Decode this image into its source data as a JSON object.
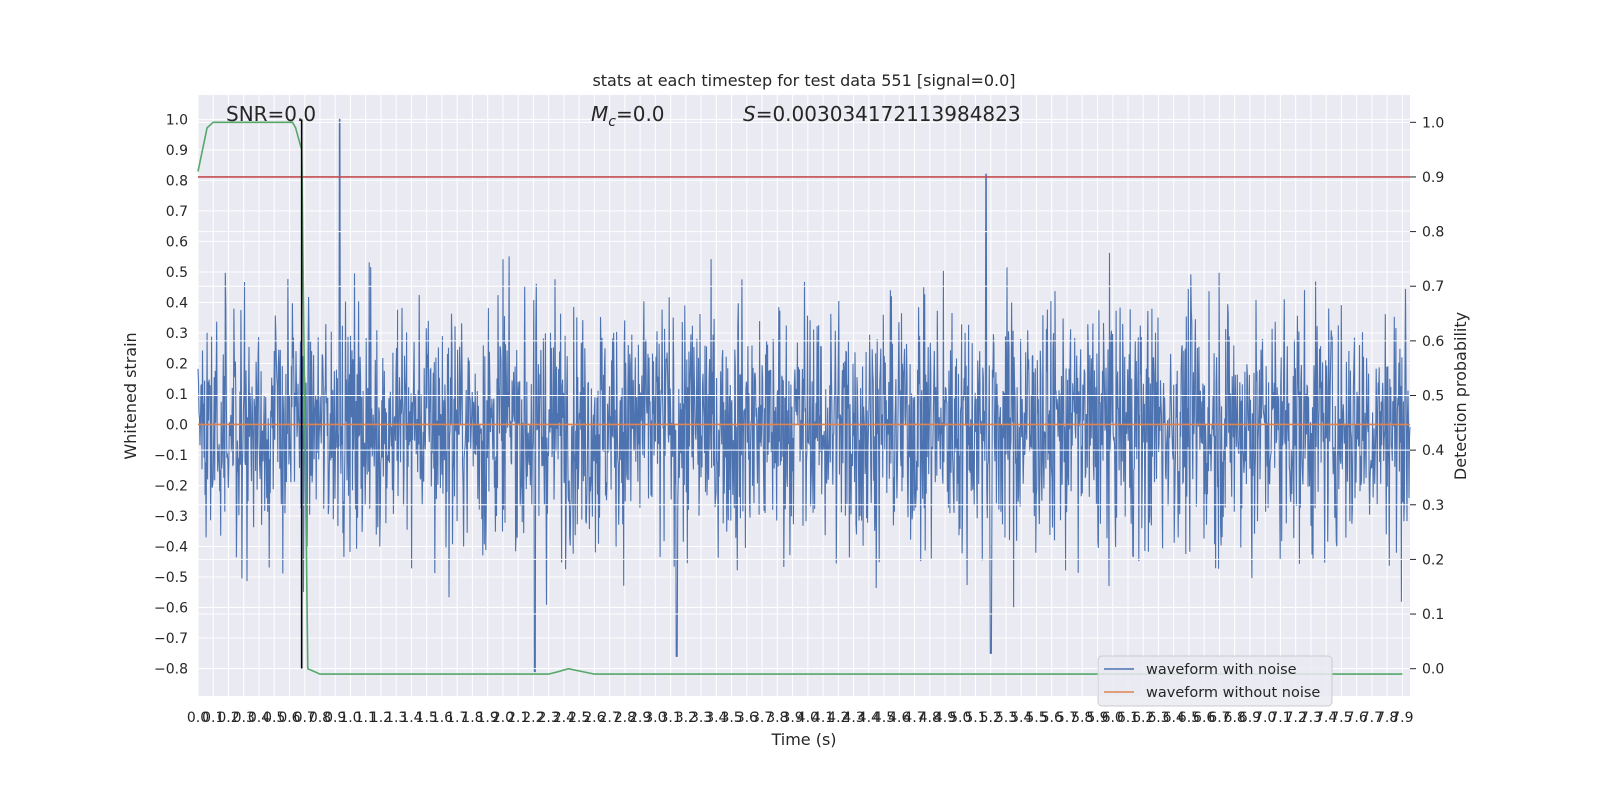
{
  "chart_data": {
    "type": "line",
    "title": "stats at each timestep for test data 551 [signal=0.0]",
    "xlabel": "Time (s)",
    "ylabel_left": "Whitened strain",
    "ylabel_right": "Detection probability",
    "xlim": [
      0.0,
      7.95
    ],
    "ylim_left": [
      -0.89,
      1.08
    ],
    "ylim_right": [
      -0.05,
      1.05
    ],
    "x_ticks": [
      0.0,
      0.1,
      0.2,
      0.3,
      0.4,
      0.5,
      0.6,
      0.7,
      0.8,
      0.9,
      1.0,
      1.1,
      1.2,
      1.3,
      1.4,
      1.5,
      1.6,
      1.7,
      1.8,
      1.9,
      2.0,
      2.1,
      2.2,
      2.3,
      2.4,
      2.5,
      2.6,
      2.7,
      2.8,
      2.9,
      3.0,
      3.1,
      3.2,
      3.3,
      3.4,
      3.5,
      3.6,
      3.7,
      3.8,
      3.9,
      4.0,
      4.1,
      4.2,
      4.3,
      4.4,
      4.5,
      4.6,
      4.7,
      4.8,
      4.9,
      5.0,
      5.1,
      5.2,
      5.3,
      5.4,
      5.5,
      5.6,
      5.7,
      5.8,
      5.9,
      6.0,
      6.1,
      6.2,
      6.3,
      6.4,
      6.5,
      6.6,
      6.7,
      6.8,
      6.9,
      7.0,
      7.1,
      7.2,
      7.3,
      7.4,
      7.5,
      7.6,
      7.7,
      7.8,
      7.9
    ],
    "y_ticks_left": [
      -0.8,
      -0.7,
      -0.6,
      -0.5,
      -0.4,
      -0.3,
      -0.2,
      -0.1,
      0.0,
      0.1,
      0.2,
      0.3,
      0.4,
      0.5,
      0.6,
      0.7,
      0.8,
      0.9,
      1.0
    ],
    "y_ticks_right": [
      0.0,
      0.1,
      0.2,
      0.3,
      0.4,
      0.5,
      0.6,
      0.7,
      0.8,
      0.9,
      1.0
    ],
    "annotations": {
      "snr": "SNR=0.0",
      "mc_symbol": "M",
      "mc_sub": "c",
      "mc_value": "=0.0",
      "s_symbol": "S",
      "s_value": "=0.003034172113984823"
    },
    "series": [
      {
        "name": "waveform with noise",
        "axis": "left",
        "color": "#4c72b0",
        "description_range": [
          -0.81,
          1.0
        ],
        "peaks": [
          {
            "x": 0.93,
            "y": 1.0
          },
          {
            "x": 5.17,
            "y": 0.82
          },
          {
            "x": 2.21,
            "y": -0.81
          },
          {
            "x": 5.2,
            "y": -0.75
          },
          {
            "x": 3.14,
            "y": -0.76
          }
        ]
      },
      {
        "name": "waveform without noise",
        "axis": "left",
        "color": "#dd8452",
        "x": [
          0.0,
          7.95
        ],
        "y": [
          0.0,
          0.0
        ]
      },
      {
        "name": "detection probability",
        "axis": "right",
        "color": "#55a868",
        "x": [
          0.0,
          0.06,
          0.1,
          0.2,
          0.4,
          0.6,
          0.62,
          0.64,
          0.66,
          0.68,
          0.72,
          0.8,
          1.0,
          2.0,
          2.3,
          2.37,
          2.43,
          2.6,
          4.0,
          6.0,
          7.9
        ],
        "y": [
          0.91,
          0.99,
          1.0,
          1.0,
          1.0,
          1.0,
          1.0,
          0.99,
          0.97,
          0.95,
          0.0,
          -0.01,
          -0.01,
          -0.01,
          -0.01,
          -0.005,
          0.0,
          -0.01,
          -0.01,
          -0.01,
          -0.01
        ]
      }
    ],
    "threshold": {
      "axis": "right",
      "value": 0.9,
      "color": "#c44e52"
    },
    "vline": {
      "x": 0.68,
      "ymin_left": -0.8,
      "ymax_left": 1.0,
      "color": "#000000"
    },
    "legend": {
      "placement": "bottom-right",
      "entries": [
        "waveform with noise",
        "waveform without noise"
      ]
    },
    "background_color": "#eaeaf2",
    "grid": true
  }
}
